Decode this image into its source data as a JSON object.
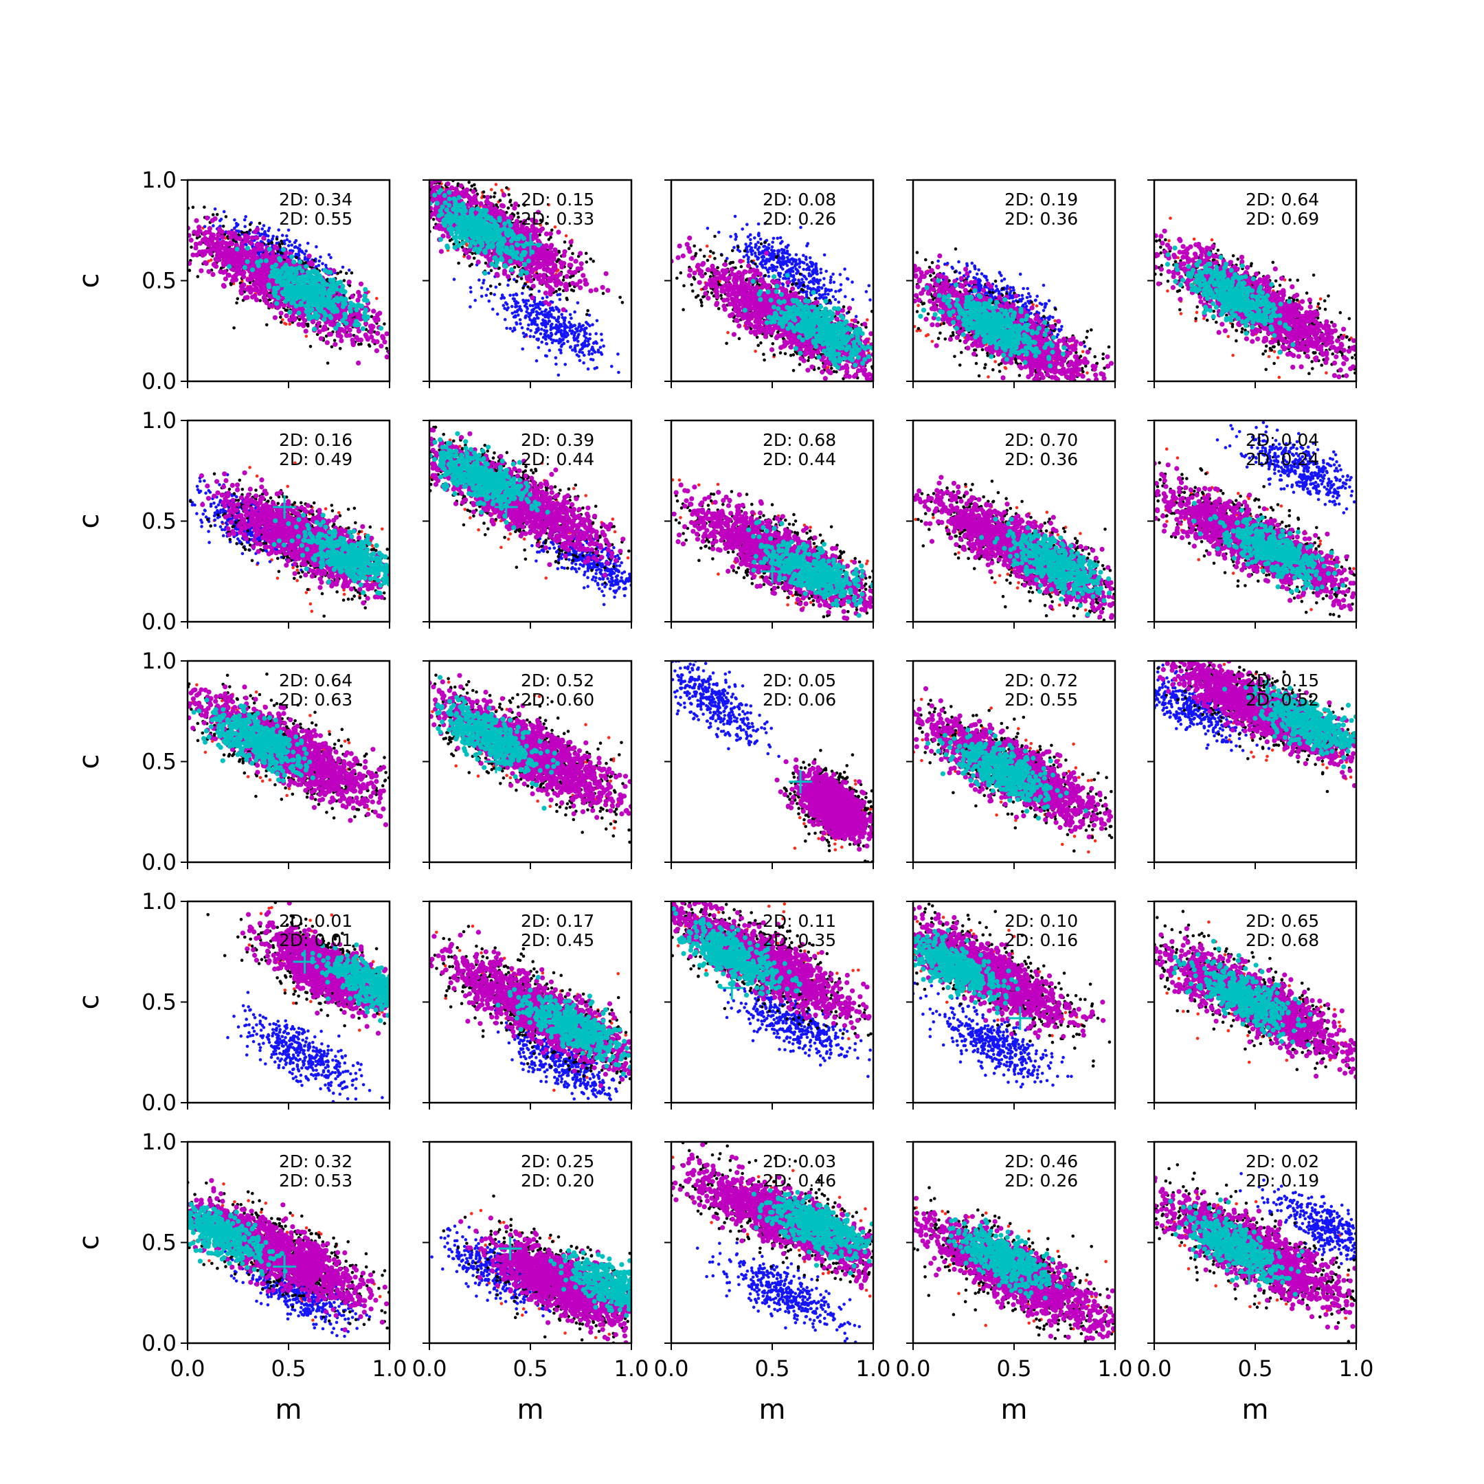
{
  "colors": {
    "background": "#ffffff",
    "axes": "#000000",
    "outer": "#ff2a1a",
    "dark": "#000000",
    "alt": "#1414ff",
    "mid": "#c000c0",
    "core": "#00c0c0",
    "marker": "#00c0c0"
  },
  "chart_data": {
    "type": "scatter",
    "layout": {
      "rows": 5,
      "cols": 5
    },
    "xlabel": "m",
    "ylabel": "c",
    "xlim": [
      0,
      1
    ],
    "ylim": [
      0,
      1
    ],
    "xticks": [
      0.0,
      0.5,
      1.0
    ],
    "yticks": [
      0.0,
      0.5,
      1.0
    ],
    "xtick_labels": [
      "0.0",
      "0.5",
      "1.0"
    ],
    "ytick_labels": [
      "0.0",
      "0.5",
      "1.0"
    ],
    "grid": false,
    "legend": "none",
    "panels": [
      {
        "row": 0,
        "col": 0,
        "annot": [
          "2D: 0.34",
          "2D: 0.55"
        ],
        "center": [
          0.5,
          0.48
        ],
        "slope": -0.55,
        "spread": 0.1,
        "len": 0.75,
        "core": [
          0.6,
          0.45
        ],
        "alt": [
          0.45,
          0.62
        ],
        "marker": null
      },
      {
        "row": 0,
        "col": 1,
        "annot": [
          "2D: 0.15",
          "2D: 0.33"
        ],
        "center": [
          0.3,
          0.75
        ],
        "slope": -0.6,
        "spread": 0.1,
        "len": 0.7,
        "core": [
          0.25,
          0.75
        ],
        "alt": [
          0.6,
          0.28
        ],
        "marker": [
          0.5,
          0.68
        ]
      },
      {
        "row": 0,
        "col": 2,
        "annot": [
          "2D: 0.08",
          "2D: 0.26"
        ],
        "center": [
          0.6,
          0.3
        ],
        "slope": -0.55,
        "spread": 0.1,
        "len": 0.75,
        "core": [
          0.75,
          0.25
        ],
        "alt": [
          0.6,
          0.55
        ],
        "marker": null
      },
      {
        "row": 0,
        "col": 3,
        "annot": [
          "2D: 0.19",
          "2D: 0.36"
        ],
        "center": [
          0.45,
          0.25
        ],
        "slope": -0.55,
        "spread": 0.1,
        "len": 0.75,
        "core": [
          0.4,
          0.28
        ],
        "alt": [
          0.45,
          0.38
        ],
        "marker": null
      },
      {
        "row": 0,
        "col": 4,
        "annot": [
          "2D: 0.64",
          "2D: 0.69"
        ],
        "center": [
          0.5,
          0.38
        ],
        "slope": -0.55,
        "spread": 0.1,
        "len": 0.75,
        "core": [
          0.4,
          0.42
        ],
        "alt": null,
        "marker": null
      },
      {
        "row": 1,
        "col": 0,
        "annot": [
          "2D: 0.16",
          "2D: 0.49"
        ],
        "center": [
          0.6,
          0.4
        ],
        "slope": -0.5,
        "spread": 0.1,
        "len": 0.65,
        "core": [
          0.8,
          0.32
        ],
        "alt": [
          0.3,
          0.48
        ],
        "marker": [
          0.48,
          0.57
        ]
      },
      {
        "row": 1,
        "col": 1,
        "annot": [
          "2D: 0.39",
          "2D: 0.44"
        ],
        "center": [
          0.4,
          0.62
        ],
        "slope": -0.55,
        "spread": 0.1,
        "len": 0.75,
        "core": [
          0.25,
          0.72
        ],
        "alt": [
          0.8,
          0.3
        ],
        "marker": [
          0.38,
          0.57
        ]
      },
      {
        "row": 1,
        "col": 2,
        "annot": [
          "2D: 0.68",
          "2D: 0.44"
        ],
        "center": [
          0.55,
          0.32
        ],
        "slope": -0.5,
        "spread": 0.1,
        "len": 0.75,
        "core": [
          0.7,
          0.25
        ],
        "alt": null,
        "marker": [
          0.5,
          0.25
        ]
      },
      {
        "row": 1,
        "col": 3,
        "annot": [
          "2D: 0.70",
          "2D: 0.36"
        ],
        "center": [
          0.55,
          0.35
        ],
        "slope": -0.55,
        "spread": 0.1,
        "len": 0.75,
        "core": [
          0.7,
          0.28
        ],
        "alt": null,
        "marker": null
      },
      {
        "row": 1,
        "col": 4,
        "annot": [
          "2D: 0.04",
          "2D: 0.24"
        ],
        "center": [
          0.5,
          0.4
        ],
        "slope": -0.5,
        "spread": 0.1,
        "len": 0.8,
        "core": [
          0.6,
          0.35
        ],
        "alt": [
          0.75,
          0.75
        ],
        "marker": null
      },
      {
        "row": 2,
        "col": 0,
        "annot": [
          "2D: 0.64",
          "2D: 0.63"
        ],
        "center": [
          0.5,
          0.55
        ],
        "slope": -0.55,
        "spread": 0.1,
        "len": 0.75,
        "core": [
          0.35,
          0.6
        ],
        "alt": null,
        "marker": null
      },
      {
        "row": 2,
        "col": 1,
        "annot": [
          "2D: 0.52",
          "2D: 0.60"
        ],
        "center": [
          0.5,
          0.55
        ],
        "slope": -0.55,
        "spread": 0.1,
        "len": 0.75,
        "core": [
          0.3,
          0.62
        ],
        "alt": null,
        "marker": [
          0.33,
          0.5
        ]
      },
      {
        "row": 2,
        "col": 2,
        "annot": [
          "2D: 0.05",
          "2D: 0.06"
        ],
        "center": [
          0.8,
          0.28
        ],
        "slope": -0.8,
        "spread": 0.08,
        "len": 0.3,
        "core": null,
        "alt": [
          0.2,
          0.8
        ],
        "marker": [
          0.64,
          0.4
        ]
      },
      {
        "row": 2,
        "col": 3,
        "annot": [
          "2D: 0.72",
          "2D: 0.55"
        ],
        "center": [
          0.5,
          0.45
        ],
        "slope": -0.55,
        "spread": 0.1,
        "len": 0.75,
        "core": [
          0.45,
          0.45
        ],
        "alt": null,
        "marker": null
      },
      {
        "row": 2,
        "col": 4,
        "annot": [
          "2D: 0.15",
          "2D: 0.52"
        ],
        "center": [
          0.55,
          0.75
        ],
        "slope": -0.5,
        "spread": 0.09,
        "len": 0.7,
        "core": [
          0.75,
          0.7
        ],
        "alt": [
          0.15,
          0.78
        ],
        "marker": null
      },
      {
        "row": 3,
        "col": 0,
        "annot": [
          "2D: 0.01",
          "2D: 0.01"
        ],
        "center": [
          0.7,
          0.65
        ],
        "slope": -0.55,
        "spread": 0.09,
        "len": 0.5,
        "core": [
          0.92,
          0.58
        ],
        "alt": [
          0.55,
          0.25
        ],
        "marker": [
          0.58,
          0.7
        ]
      },
      {
        "row": 3,
        "col": 1,
        "annot": [
          "2D: 0.17",
          "2D: 0.45"
        ],
        "center": [
          0.55,
          0.45
        ],
        "slope": -0.55,
        "spread": 0.1,
        "len": 0.75,
        "core": [
          0.7,
          0.38
        ],
        "alt": [
          0.65,
          0.2
        ],
        "marker": null
      },
      {
        "row": 3,
        "col": 2,
        "annot": [
          "2D: 0.11",
          "2D: 0.35"
        ],
        "center": [
          0.45,
          0.7
        ],
        "slope": -0.55,
        "spread": 0.1,
        "len": 0.75,
        "core": [
          0.3,
          0.73
        ],
        "alt": [
          0.6,
          0.4
        ],
        "marker": [
          0.3,
          0.57
        ]
      },
      {
        "row": 3,
        "col": 3,
        "annot": [
          "2D: 0.10",
          "2D: 0.16"
        ],
        "center": [
          0.35,
          0.65
        ],
        "slope": -0.55,
        "spread": 0.1,
        "len": 0.7,
        "core": [
          0.2,
          0.68
        ],
        "alt": [
          0.4,
          0.3
        ],
        "marker": [
          0.53,
          0.42
        ]
      },
      {
        "row": 3,
        "col": 4,
        "annot": [
          "2D: 0.65",
          "2D: 0.68"
        ],
        "center": [
          0.5,
          0.5
        ],
        "slope": -0.55,
        "spread": 0.1,
        "len": 0.75,
        "core": [
          0.45,
          0.52
        ],
        "alt": null,
        "marker": null
      },
      {
        "row": 4,
        "col": 0,
        "annot": [
          "2D: 0.32",
          "2D: 0.53"
        ],
        "center": [
          0.45,
          0.45
        ],
        "slope": -0.5,
        "spread": 0.1,
        "len": 0.7,
        "core": [
          0.15,
          0.55
        ],
        "alt": [
          0.55,
          0.25
        ],
        "marker": [
          0.48,
          0.38
        ]
      },
      {
        "row": 4,
        "col": 1,
        "annot": [
          "2D: 0.25",
          "2D: 0.20"
        ],
        "center": [
          0.65,
          0.3
        ],
        "slope": -0.5,
        "spread": 0.1,
        "len": 0.55,
        "core": [
          0.92,
          0.28
        ],
        "alt": [
          0.35,
          0.35
        ],
        "marker": [
          0.4,
          0.47
        ]
      },
      {
        "row": 4,
        "col": 2,
        "annot": [
          "2D: 0.03",
          "2D: 0.46"
        ],
        "center": [
          0.6,
          0.6
        ],
        "slope": -0.45,
        "spread": 0.1,
        "len": 0.8,
        "core": [
          0.72,
          0.58
        ],
        "alt": [
          0.55,
          0.25
        ],
        "marker": null
      },
      {
        "row": 4,
        "col": 3,
        "annot": [
          "2D: 0.46",
          "2D: 0.26"
        ],
        "center": [
          0.5,
          0.35
        ],
        "slope": -0.55,
        "spread": 0.1,
        "len": 0.75,
        "core": [
          0.45,
          0.42
        ],
        "alt": null,
        "marker": null
      },
      {
        "row": 4,
        "col": 4,
        "annot": [
          "2D: 0.02",
          "2D: 0.19"
        ],
        "center": [
          0.5,
          0.45
        ],
        "slope": -0.55,
        "spread": 0.1,
        "len": 0.75,
        "core": [
          0.4,
          0.48
        ],
        "alt": [
          0.85,
          0.58
        ],
        "marker": [
          0.47,
          0.35
        ]
      }
    ]
  }
}
